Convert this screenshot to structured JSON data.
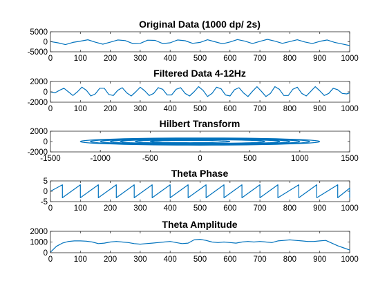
{
  "figure": {
    "background": "#ffffff",
    "line_color": "#0072BD",
    "axis_color": "#262626"
  },
  "chart_data": [
    {
      "type": "line",
      "title": "Original Data (1000 dp/ 2s)",
      "xlabel": "",
      "ylabel": "",
      "xlim": [
        0,
        1000
      ],
      "ylim": [
        -5000,
        5000
      ],
      "xticks": [
        0,
        100,
        200,
        300,
        400,
        500,
        600,
        700,
        800,
        900,
        1000
      ],
      "yticks": [
        -5000,
        0,
        5000
      ],
      "xtick_labels": [
        "0",
        "100",
        "200",
        "300",
        "400",
        "500",
        "600",
        "700",
        "800",
        "900",
        "1000"
      ],
      "ytick_labels": [
        "-5000",
        "0",
        "5000"
      ],
      "grid": false,
      "series": [
        {
          "x": [
            0,
            25,
            50,
            75,
            100,
            125,
            150,
            175,
            200,
            225,
            250,
            275,
            300,
            325,
            350,
            375,
            400,
            425,
            450,
            475,
            500,
            525,
            550,
            575,
            600,
            625,
            650,
            675,
            700,
            725,
            750,
            775,
            800,
            825,
            850,
            875,
            900,
            925,
            950,
            975,
            1000
          ],
          "y": [
            100,
            -500,
            -1400,
            -300,
            300,
            1000,
            -200,
            -1200,
            -200,
            900,
            600,
            -900,
            -800,
            800,
            700,
            -900,
            -500,
            900,
            500,
            -800,
            -300,
            1000,
            0,
            -1000,
            -100,
            1100,
            300,
            -900,
            200,
            1200,
            300,
            -800,
            100,
            1000,
            -100,
            -900,
            200,
            900,
            -300,
            -1100,
            -1900
          ]
        }
      ]
    },
    {
      "type": "line",
      "title": "Filtered Data 4-12Hz",
      "xlabel": "",
      "ylabel": "",
      "xlim": [
        0,
        1000
      ],
      "ylim": [
        -2000,
        2000
      ],
      "xticks": [
        0,
        100,
        200,
        300,
        400,
        500,
        600,
        700,
        800,
        900,
        1000
      ],
      "yticks": [
        -2000,
        0,
        2000
      ],
      "xtick_labels": [
        "0",
        "100",
        "200",
        "300",
        "400",
        "500",
        "600",
        "700",
        "800",
        "900",
        "1000"
      ],
      "ytick_labels": [
        "-2000",
        "0",
        "2000"
      ],
      "grid": false,
      "series": [
        {
          "x": [
            0,
            15,
            30,
            45,
            60,
            75,
            90,
            105,
            120,
            135,
            150,
            165,
            180,
            195,
            210,
            225,
            240,
            255,
            270,
            285,
            300,
            315,
            330,
            345,
            360,
            375,
            390,
            405,
            420,
            435,
            450,
            465,
            480,
            495,
            510,
            525,
            540,
            555,
            570,
            585,
            600,
            615,
            630,
            645,
            660,
            675,
            690,
            705,
            720,
            735,
            750,
            765,
            780,
            795,
            810,
            825,
            840,
            855,
            870,
            885,
            900,
            915,
            930,
            945,
            960,
            975,
            990,
            1000
          ],
          "y": [
            0,
            -200,
            300,
            700,
            0,
            -700,
            0,
            900,
            300,
            -800,
            -400,
            700,
            700,
            -500,
            -700,
            300,
            800,
            -200,
            -800,
            0,
            900,
            200,
            -700,
            -300,
            800,
            500,
            -600,
            -600,
            500,
            800,
            -300,
            -800,
            0,
            1000,
            300,
            -900,
            -300,
            900,
            600,
            -600,
            -800,
            400,
            800,
            -200,
            -900,
            100,
            1000,
            100,
            -900,
            -300,
            1000,
            500,
            -700,
            -700,
            500,
            900,
            -300,
            -800,
            100,
            1000,
            200,
            -700,
            -300,
            700,
            400,
            -300,
            -400,
            -200
          ]
        }
      ]
    },
    {
      "type": "line",
      "title": "Hilbert Transform",
      "xlabel": "",
      "ylabel": "",
      "xlim": [
        -1500,
        1500
      ],
      "ylim": [
        -2000,
        2000
      ],
      "xticks": [
        -1500,
        -1000,
        -500,
        0,
        500,
        1000,
        1500
      ],
      "yticks": [
        -2000,
        0,
        2000
      ],
      "xtick_labels": [
        "-1500",
        "-1000",
        "-500",
        "0",
        "500",
        "1000",
        "1500"
      ],
      "ytick_labels": [
        "-2000",
        "0",
        "2000"
      ],
      "grid": false,
      "series": [
        {
          "loops": [
            {
              "cx": 0,
              "cy": 0,
              "rx": 1200,
              "ry": 700
            },
            {
              "cx": 0,
              "cy": 0,
              "rx": 1100,
              "ry": 620
            },
            {
              "cx": 0,
              "cy": 0,
              "rx": 1000,
              "ry": 560
            },
            {
              "cx": 0,
              "cy": 0,
              "rx": 900,
              "ry": 500
            },
            {
              "cx": 0,
              "cy": 0,
              "rx": 800,
              "ry": 440
            },
            {
              "cx": 0,
              "cy": 0,
              "rx": 650,
              "ry": 360
            },
            {
              "cx": -100,
              "cy": 0,
              "rx": 400,
              "ry": 220
            }
          ]
        }
      ]
    },
    {
      "type": "line",
      "title": "Theta Phase",
      "xlabel": "",
      "ylabel": "",
      "xlim": [
        0,
        1000
      ],
      "ylim": [
        -5,
        5
      ],
      "xticks": [
        0,
        100,
        200,
        300,
        400,
        500,
        600,
        700,
        800,
        900,
        1000
      ],
      "yticks": [
        -5,
        0,
        5
      ],
      "xtick_labels": [
        "0",
        "100",
        "200",
        "300",
        "400",
        "500",
        "600",
        "700",
        "800",
        "900",
        "1000"
      ],
      "ytick_labels": [
        "-5",
        "0",
        "5"
      ],
      "grid": false,
      "series": [
        {
          "wraps": [
            0,
            40,
            100,
            160,
            220,
            280,
            340,
            400,
            460,
            520,
            580,
            640,
            700,
            760,
            830,
            890,
            960,
            1000
          ],
          "ymin": -3.14,
          "ymax": 3.14
        }
      ]
    },
    {
      "type": "line",
      "title": "Theta Amplitude",
      "xlabel": "",
      "ylabel": "",
      "xlim": [
        0,
        1000
      ],
      "ylim": [
        0,
        2000
      ],
      "xticks": [
        0,
        100,
        200,
        300,
        400,
        500,
        600,
        700,
        800,
        900,
        1000
      ],
      "yticks": [
        0,
        1000,
        2000
      ],
      "xtick_labels": [
        "0",
        "100",
        "200",
        "300",
        "400",
        "500",
        "600",
        "700",
        "800",
        "900",
        "1000"
      ],
      "ytick_labels": [
        "0",
        "1000",
        "2000"
      ],
      "grid": false,
      "series": [
        {
          "x": [
            0,
            20,
            40,
            60,
            80,
            100,
            120,
            140,
            160,
            180,
            200,
            220,
            240,
            260,
            280,
            300,
            320,
            340,
            360,
            380,
            400,
            420,
            440,
            460,
            480,
            500,
            520,
            540,
            560,
            580,
            600,
            620,
            640,
            660,
            680,
            700,
            720,
            740,
            760,
            780,
            800,
            820,
            840,
            860,
            880,
            900,
            920,
            940,
            960,
            980,
            1000
          ],
          "y": [
            50,
            600,
            900,
            1050,
            1100,
            1100,
            1080,
            1000,
            850,
            900,
            1000,
            1050,
            1000,
            950,
            850,
            800,
            850,
            900,
            950,
            1000,
            1050,
            950,
            850,
            900,
            1200,
            1250,
            1150,
            1000,
            950,
            1000,
            950,
            900,
            1000,
            1050,
            1000,
            1050,
            1000,
            950,
            1100,
            1150,
            1200,
            1150,
            1100,
            1050,
            1050,
            1100,
            1150,
            900,
            650,
            450,
            250
          ]
        }
      ]
    }
  ]
}
